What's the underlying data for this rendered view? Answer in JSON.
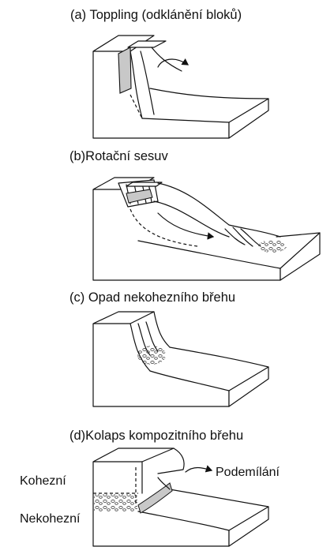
{
  "panels": {
    "a": {
      "title": "(a) Toppling (odklánění bloků)"
    },
    "b": {
      "title": "(b)Rotační sesuv"
    },
    "c": {
      "title": "(c) Opad nekohezního břehu"
    },
    "d": {
      "title": "(d)Kolaps kompozitního břehu",
      "label_cohesive": "Kohezní",
      "label_noncohesive": "Nekohezní",
      "label_undercut": "Podemílání"
    }
  },
  "colors": {
    "line": "#111111",
    "shade": "#c8c8c8",
    "background": "#ffffff"
  }
}
